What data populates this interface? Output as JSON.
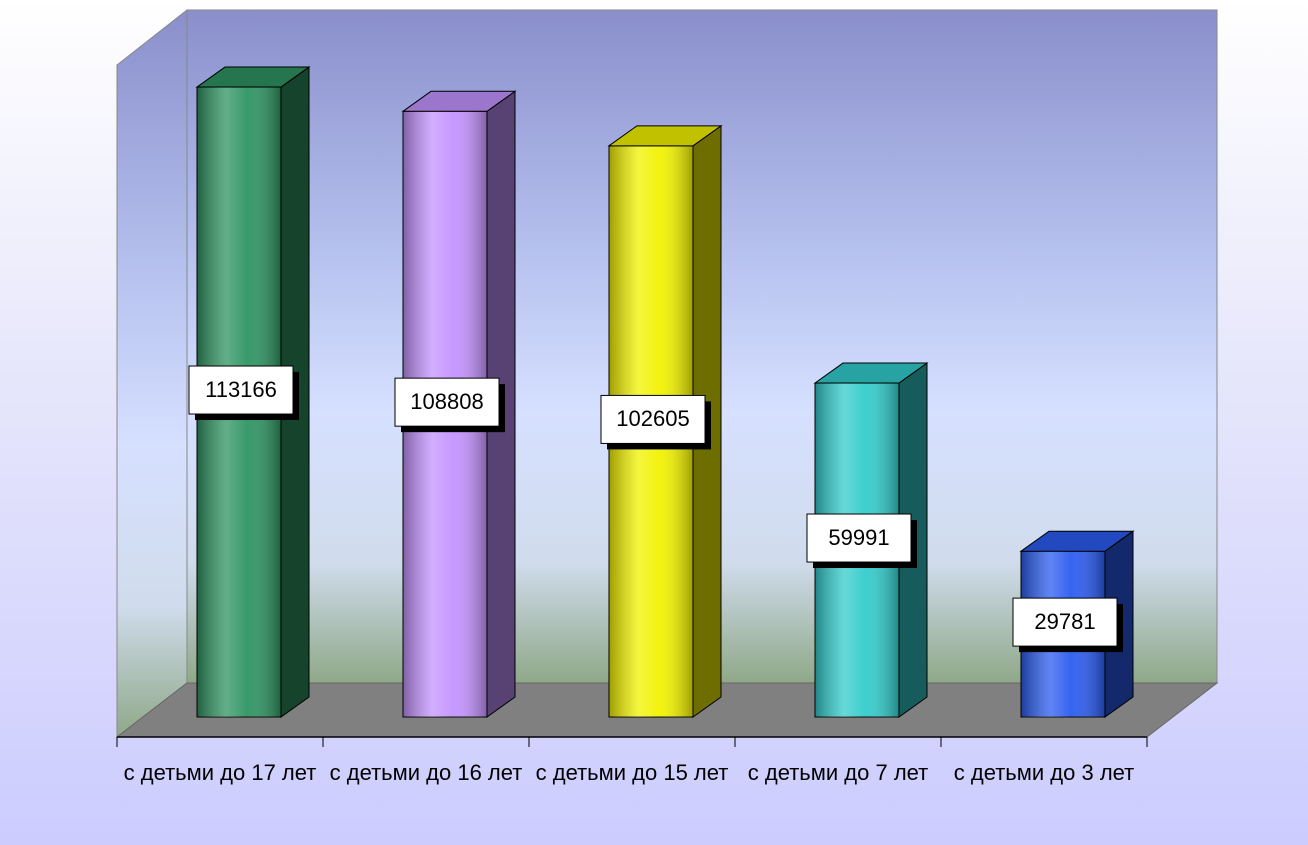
{
  "chart_data": {
    "type": "bar3d",
    "categories": [
      "с детьми до 17 лет",
      "с детьми до 16 лет",
      "с детьми до 15 лет",
      "с детьми до 7 лет",
      "с детьми до 3 лет"
    ],
    "values": [
      113166,
      108808,
      102605,
      59991,
      29781
    ],
    "colors": [
      "#2f9462",
      "#c493ff",
      "#f2f200",
      "#33cccc",
      "#2b5cf0"
    ],
    "ylim": [
      0,
      120000
    ]
  }
}
